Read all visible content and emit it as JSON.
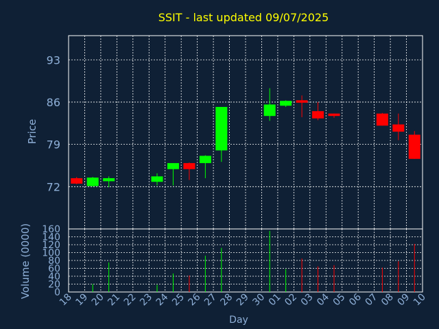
{
  "chart_data": {
    "type": "candlestick",
    "title": "SSIT - last updated 09/07/2025",
    "xlabel": "Day",
    "x_ticks": [
      "18",
      "19",
      "20",
      "21",
      "22",
      "23",
      "24",
      "25",
      "26",
      "27",
      "28",
      "29",
      "30",
      "01",
      "02",
      "03",
      "04",
      "05",
      "06",
      "07",
      "08",
      "09",
      "10"
    ],
    "price": {
      "ylabel": "Price",
      "ylim": [
        65,
        97
      ],
      "yticks": [
        72,
        79,
        86,
        93
      ],
      "series": [
        {
          "x": 0,
          "open": 73.4,
          "high": 73.6,
          "low": 72.4,
          "close": 72.5
        },
        {
          "x": 1,
          "open": 72.1,
          "high": 73.6,
          "low": 72.0,
          "close": 73.5
        },
        {
          "x": 2,
          "open": 72.9,
          "high": 73.7,
          "low": 71.9,
          "close": 73.4
        },
        {
          "x": 5,
          "open": 72.8,
          "high": 74.2,
          "low": 72.2,
          "close": 73.7
        },
        {
          "x": 6,
          "open": 74.9,
          "high": 75.9,
          "low": 72.2,
          "close": 75.9
        },
        {
          "x": 7,
          "open": 75.9,
          "high": 76.0,
          "low": 73.1,
          "close": 74.9
        },
        {
          "x": 8,
          "open": 75.9,
          "high": 77.2,
          "low": 73.4,
          "close": 77.1
        },
        {
          "x": 9,
          "open": 78.0,
          "high": 85.2,
          "low": 76.1,
          "close": 85.2
        },
        {
          "x": 12,
          "open": 83.7,
          "high": 88.3,
          "low": 82.9,
          "close": 85.6
        },
        {
          "x": 13,
          "open": 85.4,
          "high": 86.3,
          "low": 85.2,
          "close": 86.2
        },
        {
          "x": 14,
          "open": 86.3,
          "high": 87.1,
          "low": 83.5,
          "close": 85.9
        },
        {
          "x": 15,
          "open": 84.5,
          "high": 86.0,
          "low": 83.0,
          "close": 83.3
        },
        {
          "x": 16,
          "open": 84.1,
          "high": 84.1,
          "low": 83.4,
          "close": 83.7
        },
        {
          "x": 19,
          "open": 84.1,
          "high": 84.2,
          "low": 82.1,
          "close": 82.1
        },
        {
          "x": 20,
          "open": 82.3,
          "high": 84.1,
          "low": 79.7,
          "close": 81.1
        },
        {
          "x": 21,
          "open": 80.6,
          "high": 81.2,
          "low": 76.6,
          "close": 76.6
        }
      ]
    },
    "volume": {
      "ylabel": "Volume (0000)",
      "ylim": [
        0,
        160
      ],
      "yticks": [
        0,
        20,
        40,
        60,
        80,
        100,
        120,
        140,
        160
      ],
      "series": [
        {
          "x": 1,
          "value": 20,
          "up": true
        },
        {
          "x": 2,
          "value": 75,
          "up": true
        },
        {
          "x": 5,
          "value": 18,
          "up": true
        },
        {
          "x": 6,
          "value": 47,
          "up": true
        },
        {
          "x": 7,
          "value": 42,
          "up": false
        },
        {
          "x": 8,
          "value": 92,
          "up": true
        },
        {
          "x": 9,
          "value": 112,
          "up": true
        },
        {
          "x": 12,
          "value": 155,
          "up": true
        },
        {
          "x": 13,
          "value": 58,
          "up": true
        },
        {
          "x": 14,
          "value": 85,
          "up": false
        },
        {
          "x": 15,
          "value": 65,
          "up": false
        },
        {
          "x": 16,
          "value": 68,
          "up": false
        },
        {
          "x": 19,
          "value": 62,
          "up": false
        },
        {
          "x": 20,
          "value": 78,
          "up": false
        },
        {
          "x": 21,
          "value": 122,
          "up": false
        }
      ]
    },
    "colors": {
      "background": "#0f2035",
      "title": "#ffff00",
      "axis_text": "#8fb0d8",
      "grid": "#ffffff",
      "up": "#00ff00",
      "down": "#ff0000"
    },
    "grid": true
  }
}
